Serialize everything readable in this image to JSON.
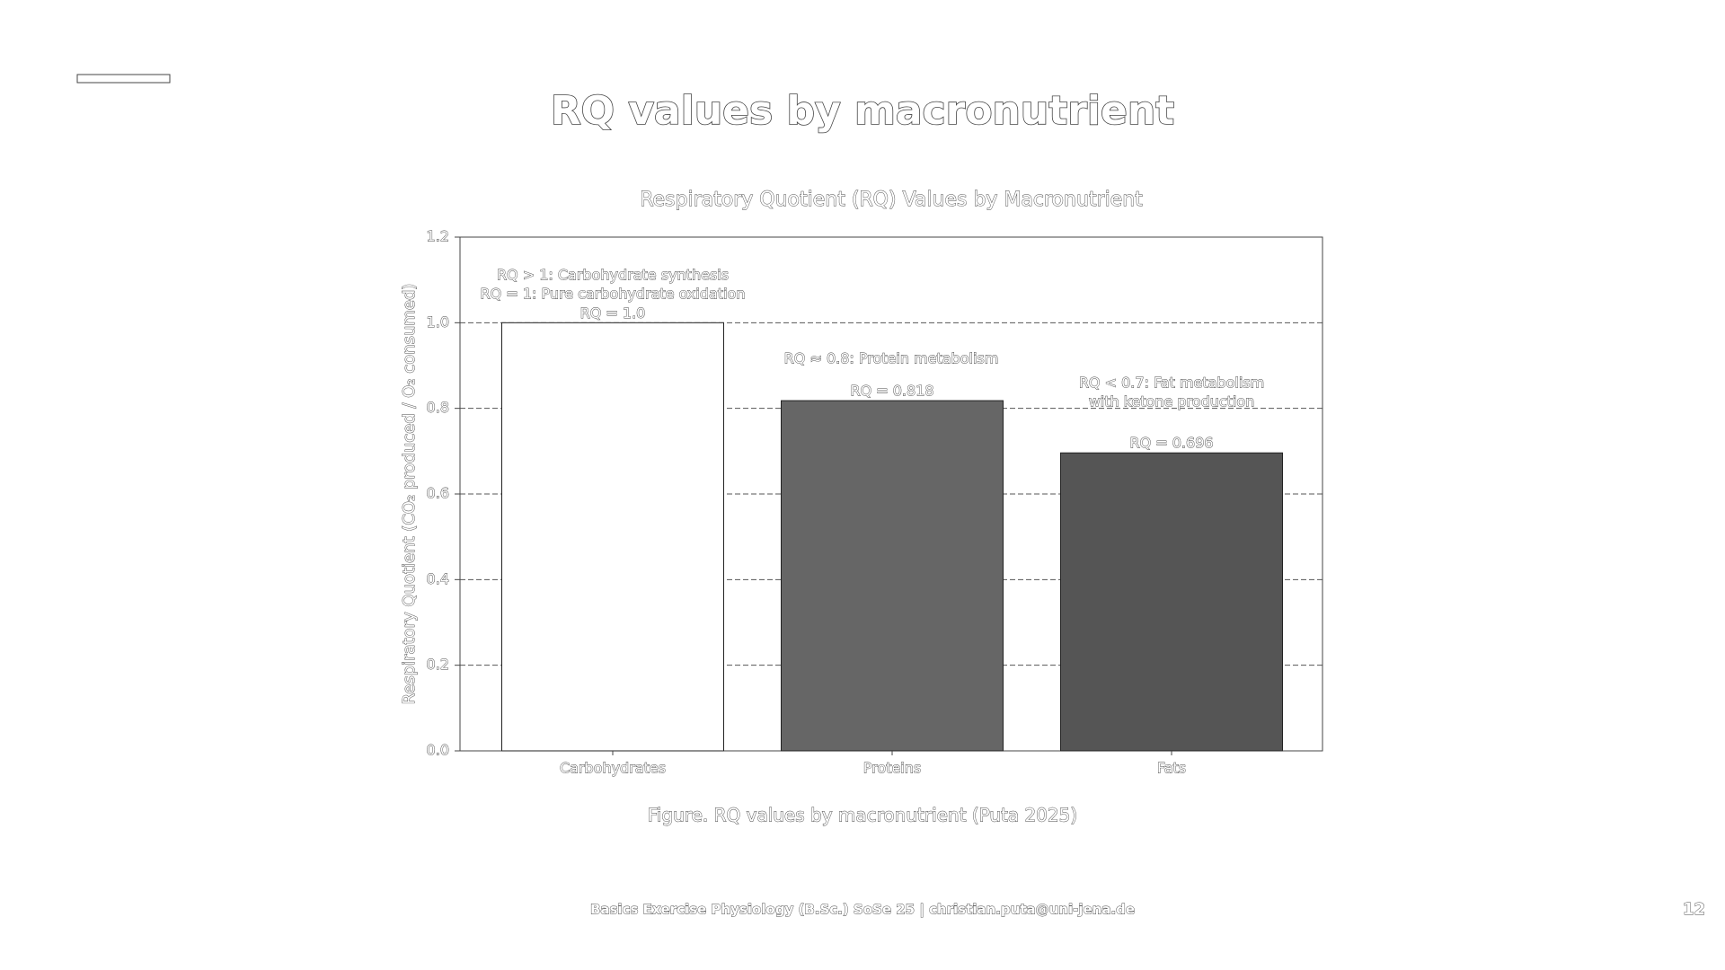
{
  "slide_title": "RQ values by macronutrient",
  "caption": "Figure. RQ values by macronutrient (Puta 2025)",
  "footer": "Basics Exercise Physiology (B.Sc.) SoSe 25 | christian.puta@uni-jena.de",
  "page_number": "12",
  "chart_data": {
    "type": "bar",
    "title": "Respiratory Quotient (RQ) Values by Macronutrient",
    "y_label": "Respiratory Quotient (CO₂ produced / O₂ consumed)",
    "categories": [
      "Carbohydrates",
      "Proteins",
      "Fats"
    ],
    "values": [
      1.0,
      0.818,
      0.696
    ],
    "value_labels": [
      "RQ = 1.0",
      "RQ = 0.818",
      "RQ = 0.696"
    ],
    "colors": [
      "#ffffff",
      "#666666",
      "#555555"
    ],
    "ylim": [
      0,
      1.2
    ],
    "yticks": [
      {
        "value": 0,
        "label": "0.0"
      },
      0.2,
      0.4,
      0.6,
      0.8,
      {
        "value": 1.0,
        "label": "1.0"
      },
      1.2
    ],
    "grid": true,
    "annotations": [
      {
        "lines": [
          "RQ > 1: Carbohydrate synthesis",
          "RQ = 1: Pure carbohydrate oxidation"
        ]
      },
      {
        "lines": [
          "RQ ≈ 0.8: Protein metabolism"
        ]
      },
      {
        "lines": [
          "RQ < 0.7: Fat metabolism",
          "with ketone production"
        ]
      }
    ]
  }
}
